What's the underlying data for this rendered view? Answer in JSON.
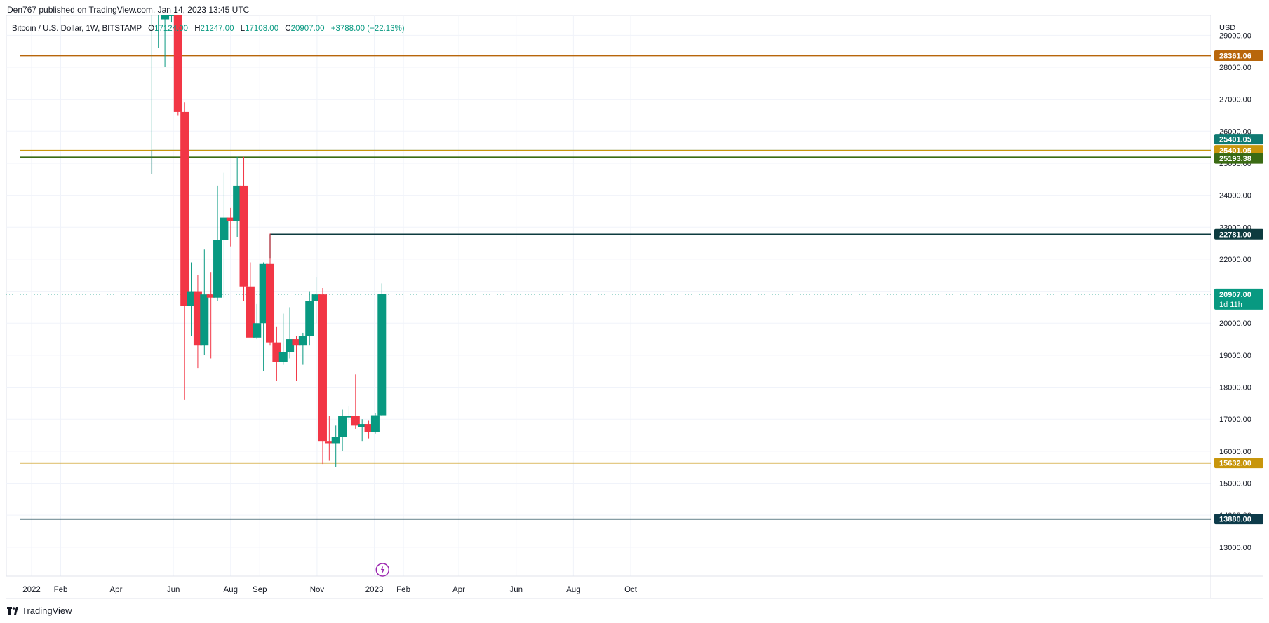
{
  "header": {
    "published": "Den767 published on TradingView.com, Jan 14, 2023 13:45 UTC"
  },
  "legend": {
    "symbol": "Bitcoin / U.S. Dollar, 1W, BITSTAMP",
    "o_label": "O",
    "o_value": "17124.00",
    "h_label": "H",
    "h_value": "21247.00",
    "l_label": "L",
    "l_value": "17108.00",
    "c_label": "C",
    "c_value": "20907.00",
    "change": "+3788.00 (+22.13%)"
  },
  "footer": {
    "brand": "TradingView",
    "logo_icon": "tradingview-logo-icon"
  },
  "colors": {
    "up": "#089981",
    "down": "#f23645",
    "orange": "#b8660b",
    "gold": "#c8960c",
    "teal_line": "#0f7a72",
    "green_dark": "#3b6b14",
    "navy": "#0d3b4a",
    "grid": "#f0f3fa",
    "axis_text": "#131722",
    "current_price": "#089981"
  },
  "chart_data": {
    "type": "candlestick",
    "title": "",
    "interval": "1W",
    "currency_label": "USD",
    "ylim": [
      12100,
      29900
    ],
    "y_ticks": [
      13000,
      14000,
      15000,
      16000,
      17000,
      18000,
      19000,
      20000,
      21000,
      22000,
      23000,
      24000,
      25000,
      26000,
      27000,
      28000,
      29000
    ],
    "x_ticks": [
      {
        "label": "2022",
        "date": "2022-01-01"
      },
      {
        "label": "Feb",
        "date": "2022-02-01"
      },
      {
        "label": "Apr",
        "date": "2022-04-01"
      },
      {
        "label": "Jun",
        "date": "2022-06-01"
      },
      {
        "label": "Aug",
        "date": "2022-08-01"
      },
      {
        "label": "Sep",
        "date": "2022-09-01"
      },
      {
        "label": "Nov",
        "date": "2022-11-01"
      },
      {
        "label": "2023",
        "date": "2023-01-01"
      },
      {
        "label": "Feb",
        "date": "2023-02-01"
      },
      {
        "label": "Apr",
        "date": "2023-04-01"
      },
      {
        "label": "Jun",
        "date": "2023-06-01"
      },
      {
        "label": "Aug",
        "date": "2023-08-01"
      },
      {
        "label": "Oct",
        "date": "2023-10-01"
      }
    ],
    "candles": [
      {
        "date": "2022-05-09",
        "open": 30000,
        "high": 30000,
        "low": 25400,
        "close": 30000
      },
      {
        "date": "2022-05-16",
        "open": 30000,
        "high": 30000,
        "low": 28600,
        "close": 30000
      },
      {
        "date": "2022-05-23",
        "open": 29500,
        "high": 30000,
        "low": 28000,
        "close": 29700
      },
      {
        "date": "2022-05-30",
        "open": 29600,
        "high": 30000,
        "low": 29400,
        "close": 29800
      },
      {
        "date": "2022-06-06",
        "open": 30000,
        "high": 30000,
        "low": 26500,
        "close": 26600
      },
      {
        "date": "2022-06-13",
        "open": 26600,
        "high": 26900,
        "low": 17600,
        "close": 20550
      },
      {
        "date": "2022-06-20",
        "open": 20550,
        "high": 21900,
        "low": 19600,
        "close": 21000
      },
      {
        "date": "2022-06-27",
        "open": 21000,
        "high": 21500,
        "low": 18600,
        "close": 19300
      },
      {
        "date": "2022-07-04",
        "open": 19300,
        "high": 22300,
        "low": 19000,
        "close": 20900
      },
      {
        "date": "2022-07-11",
        "open": 20900,
        "high": 21600,
        "low": 18900,
        "close": 20800
      },
      {
        "date": "2022-07-18",
        "open": 20800,
        "high": 24300,
        "low": 20700,
        "close": 22600
      },
      {
        "date": "2022-07-25",
        "open": 22600,
        "high": 24700,
        "low": 20800,
        "close": 23300
      },
      {
        "date": "2022-08-01",
        "open": 23300,
        "high": 23600,
        "low": 22400,
        "close": 23200
      },
      {
        "date": "2022-08-08",
        "open": 23200,
        "high": 25200,
        "low": 22700,
        "close": 24300
      },
      {
        "date": "2022-08-15",
        "open": 24300,
        "high": 25200,
        "low": 20700,
        "close": 21150
      },
      {
        "date": "2022-08-22",
        "open": 21150,
        "high": 21900,
        "low": 19600,
        "close": 19550
      },
      {
        "date": "2022-08-29",
        "open": 19550,
        "high": 20600,
        "low": 19500,
        "close": 20000
      },
      {
        "date": "2022-09-05",
        "open": 20000,
        "high": 21900,
        "low": 18500,
        "close": 21850
      },
      {
        "date": "2022-09-12",
        "open": 21850,
        "high": 22800,
        "low": 19300,
        "close": 19400
      },
      {
        "date": "2022-09-19",
        "open": 19400,
        "high": 19900,
        "low": 18200,
        "close": 18800
      },
      {
        "date": "2022-09-26",
        "open": 18800,
        "high": 20300,
        "low": 18700,
        "close": 19100
      },
      {
        "date": "2022-10-03",
        "open": 19100,
        "high": 20500,
        "low": 18900,
        "close": 19500
      },
      {
        "date": "2022-10-10",
        "open": 19500,
        "high": 19600,
        "low": 18200,
        "close": 19300
      },
      {
        "date": "2022-10-17",
        "open": 19300,
        "high": 19700,
        "low": 18700,
        "close": 19600
      },
      {
        "date": "2022-10-24",
        "open": 19600,
        "high": 21000,
        "low": 19300,
        "close": 20700
      },
      {
        "date": "2022-10-31",
        "open": 20700,
        "high": 21450,
        "low": 20000,
        "close": 20900
      },
      {
        "date": "2022-11-07",
        "open": 20900,
        "high": 21100,
        "low": 15600,
        "close": 16300
      },
      {
        "date": "2022-11-14",
        "open": 16300,
        "high": 17100,
        "low": 15700,
        "close": 16250
      },
      {
        "date": "2022-11-21",
        "open": 16250,
        "high": 16800,
        "low": 15500,
        "close": 16450
      },
      {
        "date": "2022-11-28",
        "open": 16450,
        "high": 17300,
        "low": 16000,
        "close": 17100
      },
      {
        "date": "2022-12-05",
        "open": 17100,
        "high": 17400,
        "low": 16900,
        "close": 17100
      },
      {
        "date": "2022-12-12",
        "open": 17100,
        "high": 18400,
        "low": 16700,
        "close": 16800
      },
      {
        "date": "2022-12-19",
        "open": 16750,
        "high": 17000,
        "low": 16300,
        "close": 16850
      },
      {
        "date": "2022-12-26",
        "open": 16850,
        "high": 16950,
        "low": 16400,
        "close": 16600
      },
      {
        "date": "2023-01-02",
        "open": 16600,
        "high": 17200,
        "low": 16550,
        "close": 17124
      },
      {
        "date": "2023-01-09",
        "open": 17124,
        "high": 21247,
        "low": 17108,
        "close": 20907
      }
    ],
    "horizontal_lines": [
      {
        "price": 28361.06,
        "label": "28361.06",
        "color": "#b8660b",
        "start_date": "2021-12-20"
      },
      {
        "price": 25401.05,
        "label": "25401.05",
        "color": "#0f7a72",
        "start_date": "2022-05-09"
      },
      {
        "price": 25401.05,
        "label": "25401.05",
        "color": "#c8960c",
        "start_date": "2021-12-20"
      },
      {
        "price": 25193.38,
        "label": "25193.38",
        "color": "#3b6b14",
        "start_date": "2021-12-20"
      },
      {
        "price": 22781.0,
        "label": "22781.00",
        "color": "#0d3b3f",
        "start_date": "2022-09-12"
      },
      {
        "price": 15632.0,
        "label": "15632.00",
        "color": "#c8960c",
        "start_date": "2021-12-20"
      },
      {
        "price": 13880.0,
        "label": "13880.00",
        "color": "#0d3b4a",
        "start_date": "2021-12-20"
      }
    ],
    "current_price": {
      "price": 20907.0,
      "label": "20907.00",
      "countdown": "1d 11h"
    },
    "event_icon": "lightning-icon"
  }
}
